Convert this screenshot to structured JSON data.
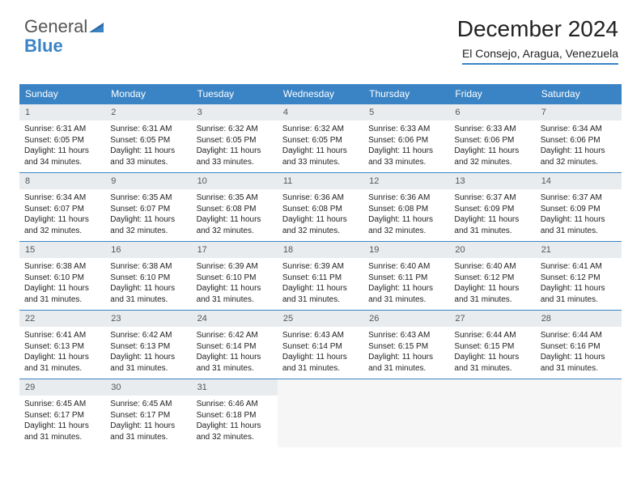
{
  "logo": {
    "text1": "General",
    "text2": "Blue"
  },
  "header": {
    "title": "December 2024",
    "subtitle": "El Consejo, Aragua, Venezuela"
  },
  "colors": {
    "header_bg": "#3a84c5",
    "header_text": "#ffffff",
    "daynum_bg": "#e9ecef",
    "border": "#3a84c5",
    "body_text": "#222222"
  },
  "dayNames": [
    "Sunday",
    "Monday",
    "Tuesday",
    "Wednesday",
    "Thursday",
    "Friday",
    "Saturday"
  ],
  "weeks": [
    [
      {
        "n": "1",
        "sr": "6:31 AM",
        "ss": "6:05 PM",
        "dl": "11 hours and 34 minutes."
      },
      {
        "n": "2",
        "sr": "6:31 AM",
        "ss": "6:05 PM",
        "dl": "11 hours and 33 minutes."
      },
      {
        "n": "3",
        "sr": "6:32 AM",
        "ss": "6:05 PM",
        "dl": "11 hours and 33 minutes."
      },
      {
        "n": "4",
        "sr": "6:32 AM",
        "ss": "6:05 PM",
        "dl": "11 hours and 33 minutes."
      },
      {
        "n": "5",
        "sr": "6:33 AM",
        "ss": "6:06 PM",
        "dl": "11 hours and 33 minutes."
      },
      {
        "n": "6",
        "sr": "6:33 AM",
        "ss": "6:06 PM",
        "dl": "11 hours and 32 minutes."
      },
      {
        "n": "7",
        "sr": "6:34 AM",
        "ss": "6:06 PM",
        "dl": "11 hours and 32 minutes."
      }
    ],
    [
      {
        "n": "8",
        "sr": "6:34 AM",
        "ss": "6:07 PM",
        "dl": "11 hours and 32 minutes."
      },
      {
        "n": "9",
        "sr": "6:35 AM",
        "ss": "6:07 PM",
        "dl": "11 hours and 32 minutes."
      },
      {
        "n": "10",
        "sr": "6:35 AM",
        "ss": "6:08 PM",
        "dl": "11 hours and 32 minutes."
      },
      {
        "n": "11",
        "sr": "6:36 AM",
        "ss": "6:08 PM",
        "dl": "11 hours and 32 minutes."
      },
      {
        "n": "12",
        "sr": "6:36 AM",
        "ss": "6:08 PM",
        "dl": "11 hours and 32 minutes."
      },
      {
        "n": "13",
        "sr": "6:37 AM",
        "ss": "6:09 PM",
        "dl": "11 hours and 31 minutes."
      },
      {
        "n": "14",
        "sr": "6:37 AM",
        "ss": "6:09 PM",
        "dl": "11 hours and 31 minutes."
      }
    ],
    [
      {
        "n": "15",
        "sr": "6:38 AM",
        "ss": "6:10 PM",
        "dl": "11 hours and 31 minutes."
      },
      {
        "n": "16",
        "sr": "6:38 AM",
        "ss": "6:10 PM",
        "dl": "11 hours and 31 minutes."
      },
      {
        "n": "17",
        "sr": "6:39 AM",
        "ss": "6:10 PM",
        "dl": "11 hours and 31 minutes."
      },
      {
        "n": "18",
        "sr": "6:39 AM",
        "ss": "6:11 PM",
        "dl": "11 hours and 31 minutes."
      },
      {
        "n": "19",
        "sr": "6:40 AM",
        "ss": "6:11 PM",
        "dl": "11 hours and 31 minutes."
      },
      {
        "n": "20",
        "sr": "6:40 AM",
        "ss": "6:12 PM",
        "dl": "11 hours and 31 minutes."
      },
      {
        "n": "21",
        "sr": "6:41 AM",
        "ss": "6:12 PM",
        "dl": "11 hours and 31 minutes."
      }
    ],
    [
      {
        "n": "22",
        "sr": "6:41 AM",
        "ss": "6:13 PM",
        "dl": "11 hours and 31 minutes."
      },
      {
        "n": "23",
        "sr": "6:42 AM",
        "ss": "6:13 PM",
        "dl": "11 hours and 31 minutes."
      },
      {
        "n": "24",
        "sr": "6:42 AM",
        "ss": "6:14 PM",
        "dl": "11 hours and 31 minutes."
      },
      {
        "n": "25",
        "sr": "6:43 AM",
        "ss": "6:14 PM",
        "dl": "11 hours and 31 minutes."
      },
      {
        "n": "26",
        "sr": "6:43 AM",
        "ss": "6:15 PM",
        "dl": "11 hours and 31 minutes."
      },
      {
        "n": "27",
        "sr": "6:44 AM",
        "ss": "6:15 PM",
        "dl": "11 hours and 31 minutes."
      },
      {
        "n": "28",
        "sr": "6:44 AM",
        "ss": "6:16 PM",
        "dl": "11 hours and 31 minutes."
      }
    ],
    [
      {
        "n": "29",
        "sr": "6:45 AM",
        "ss": "6:17 PM",
        "dl": "11 hours and 31 minutes."
      },
      {
        "n": "30",
        "sr": "6:45 AM",
        "ss": "6:17 PM",
        "dl": "11 hours and 31 minutes."
      },
      {
        "n": "31",
        "sr": "6:46 AM",
        "ss": "6:18 PM",
        "dl": "11 hours and 32 minutes."
      },
      null,
      null,
      null,
      null
    ]
  ],
  "labels": {
    "sunrise": "Sunrise:",
    "sunset": "Sunset:",
    "daylight": "Daylight:"
  }
}
